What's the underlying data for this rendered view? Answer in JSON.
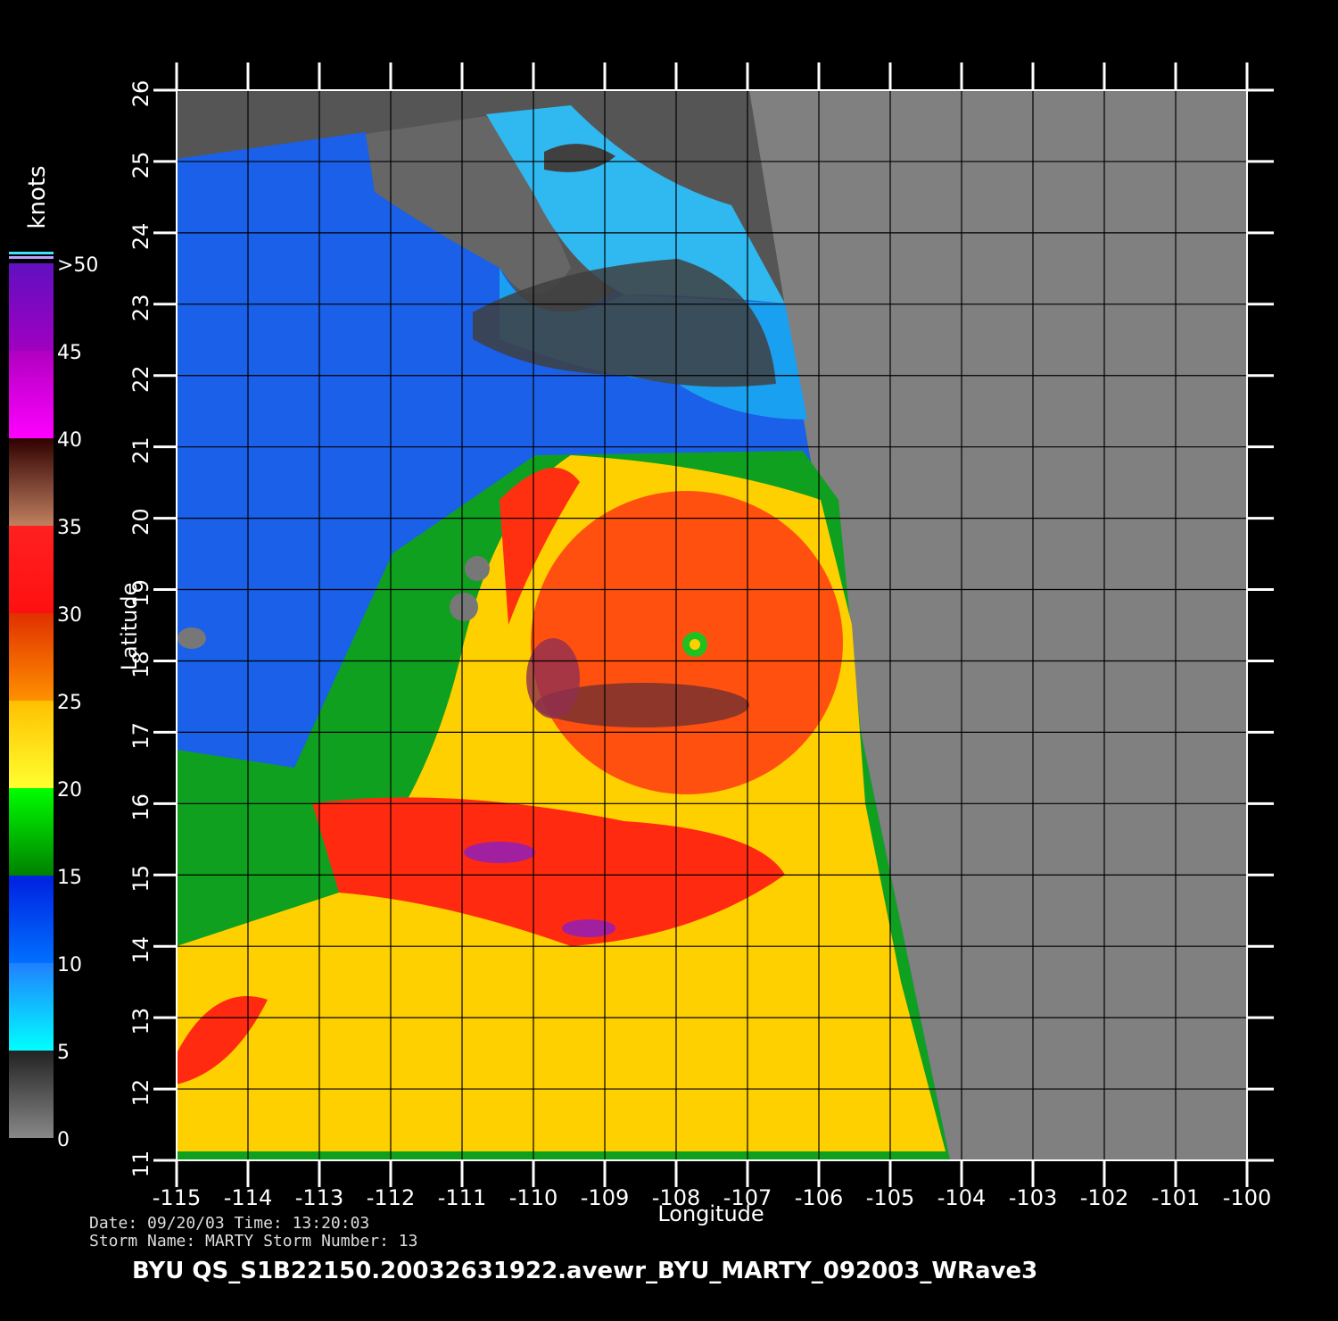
{
  "title": "BYU  QS_S1B22150.20032631922.avewr_BYU_MARTY_092003_WRave3",
  "info": {
    "line1": "Date: 09/20/03   Time: 13:20:03",
    "line2": "Storm  Name:  MARTY    Storm  Number:  13"
  },
  "map": {
    "xlabel": "Longitude",
    "ylabel": "Latitude",
    "xlim": [
      -115,
      -100
    ],
    "ylim": [
      11,
      26
    ],
    "xticks": [
      -115,
      -114,
      -113,
      -112,
      -111,
      -110,
      -109,
      -108,
      -107,
      -106,
      -105,
      -104,
      -103,
      -102,
      -101,
      -100
    ],
    "yticks": [
      11,
      12,
      13,
      14,
      15,
      16,
      17,
      18,
      19,
      20,
      21,
      22,
      23,
      24,
      25,
      26
    ]
  },
  "colorbar": {
    "label": "knots",
    "lim": [
      0,
      50
    ],
    "ticks": [
      0,
      5,
      10,
      15,
      20,
      25,
      30,
      35,
      40,
      45,
      {
        "value": 50,
        "label": ">50"
      }
    ]
  }
}
